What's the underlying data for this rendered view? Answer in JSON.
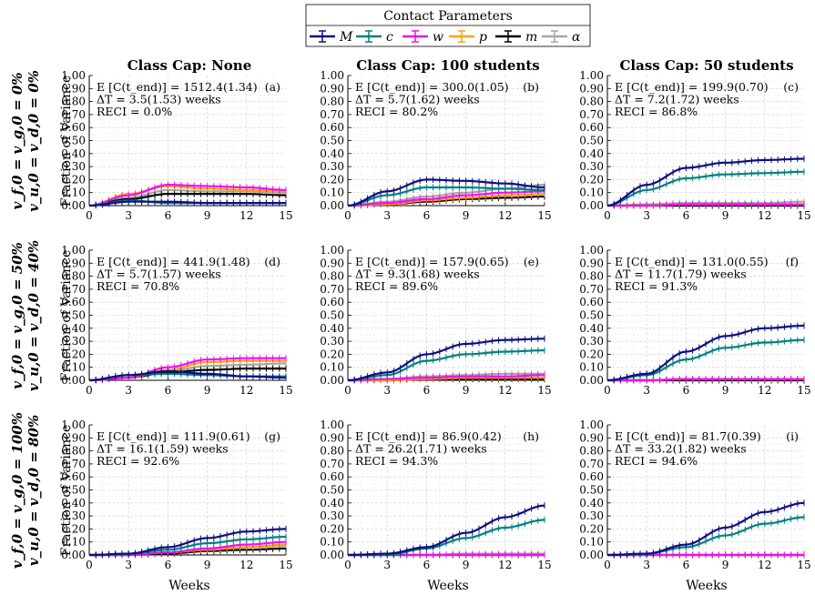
{
  "legend": {
    "title": "Contact Parameters",
    "entries": [
      {
        "label": "M",
        "color": "#0d0d80"
      },
      {
        "label": "c",
        "color": "#008080"
      },
      {
        "label": "w",
        "color": "#ee10ee"
      },
      {
        "label": "p",
        "color": "#ffa500"
      },
      {
        "label": "m",
        "color": "#000000"
      },
      {
        "label": "α",
        "color": "#a6a6a6"
      }
    ]
  },
  "column_titles": [
    "Class Cap: None",
    "Class Cap: 100 students",
    "Class Cap: 50 students"
  ],
  "row_labels": [
    {
      "line1": "v_f,0 = v_g,0 = 0%",
      "line2": "v_u,0 = v_d,0 = 0%"
    },
    {
      "line1": "v_f,0 = v_g,0 = 50%",
      "line2": "v_u,0 = v_d,0 = 40%"
    },
    {
      "line1": "v_f,0 = v_g,0 = 100%",
      "line2": "v_u,0 = v_d,0 = 80%"
    }
  ],
  "y_axis_label": "Fraction of Variance",
  "x_axis_label": "Weeks",
  "chart_data": [
    {
      "type": "line",
      "panel": "(a)",
      "expected_cases": "E [C(t_end)] = 1512.4(1.34)",
      "delta_t": "ΔT = 3.5(1.53) weeks",
      "reci": "RECI = 0.0%",
      "x": [
        0,
        3,
        6,
        9,
        12,
        15
      ],
      "xlim": [
        0,
        15
      ],
      "ylim": [
        0,
        1
      ],
      "series": [
        {
          "name": "M",
          "values": [
            0,
            0.03,
            0.03,
            0.02,
            0.02,
            0.02
          ]
        },
        {
          "name": "c",
          "values": [
            0,
            0.04,
            0.02,
            0.02,
            0.02,
            0.02
          ]
        },
        {
          "name": "w",
          "values": [
            0,
            0.08,
            0.16,
            0.15,
            0.14,
            0.12
          ]
        },
        {
          "name": "p",
          "values": [
            0,
            0.09,
            0.15,
            0.13,
            0.12,
            0.11
          ]
        },
        {
          "name": "m",
          "values": [
            0,
            0.05,
            0.09,
            0.09,
            0.09,
            0.08
          ]
        },
        {
          "name": "α",
          "values": [
            0,
            0.06,
            0.12,
            0.11,
            0.11,
            0.1
          ]
        }
      ]
    },
    {
      "type": "line",
      "panel": "(b)",
      "expected_cases": "E [C(t_end)] = 300.0(1.05)",
      "delta_t": "ΔT = 5.7(1.62) weeks",
      "reci": "RECI = 80.2%",
      "x": [
        0,
        3,
        6,
        9,
        12,
        15
      ],
      "xlim": [
        0,
        15
      ],
      "ylim": [
        0,
        1
      ],
      "series": [
        {
          "name": "M",
          "values": [
            0,
            0.11,
            0.2,
            0.19,
            0.17,
            0.14
          ]
        },
        {
          "name": "c",
          "values": [
            0,
            0.08,
            0.14,
            0.14,
            0.13,
            0.12
          ]
        },
        {
          "name": "w",
          "values": [
            0,
            0.02,
            0.05,
            0.08,
            0.1,
            0.11
          ]
        },
        {
          "name": "p",
          "values": [
            0,
            0.01,
            0.04,
            0.06,
            0.08,
            0.09
          ]
        },
        {
          "name": "m",
          "values": [
            0,
            0.01,
            0.03,
            0.05,
            0.06,
            0.07
          ]
        },
        {
          "name": "α",
          "values": [
            0,
            0.03,
            0.07,
            0.1,
            0.13,
            0.16
          ]
        }
      ]
    },
    {
      "type": "line",
      "panel": "(c)",
      "expected_cases": "E [C(t_end)] = 199.9(0.70)",
      "delta_t": "ΔT = 7.2(1.72) weeks",
      "reci": "RECI = 86.8%",
      "x": [
        0,
        3,
        6,
        9,
        12,
        15
      ],
      "xlim": [
        0,
        15
      ],
      "ylim": [
        0,
        1
      ],
      "series": [
        {
          "name": "M",
          "values": [
            0,
            0.16,
            0.29,
            0.33,
            0.35,
            0.36
          ]
        },
        {
          "name": "c",
          "values": [
            0,
            0.12,
            0.21,
            0.24,
            0.25,
            0.26
          ]
        },
        {
          "name": "w",
          "values": [
            0,
            0.0,
            0.01,
            0.01,
            0.01,
            0.01
          ]
        },
        {
          "name": "p",
          "values": [
            0,
            0.0,
            0.01,
            0.01,
            0.01,
            0.01
          ]
        },
        {
          "name": "m",
          "values": [
            0,
            0.0,
            0.0,
            0.0,
            0.0,
            0.0
          ]
        },
        {
          "name": "α",
          "values": [
            0,
            0.01,
            0.02,
            0.02,
            0.02,
            0.03
          ]
        }
      ]
    },
    {
      "type": "line",
      "panel": "(d)",
      "expected_cases": "E [C(t_end)] = 441.9(1.48)",
      "delta_t": "ΔT = 5.7(1.57) weeks",
      "reci": "RECI = 70.8%",
      "x": [
        0,
        3,
        6,
        9,
        12,
        15
      ],
      "xlim": [
        0,
        15
      ],
      "ylim": [
        0,
        1
      ],
      "series": [
        {
          "name": "M",
          "values": [
            0,
            0.04,
            0.07,
            0.05,
            0.03,
            0.02
          ]
        },
        {
          "name": "c",
          "values": [
            0,
            0.04,
            0.05,
            0.04,
            0.03,
            0.03
          ]
        },
        {
          "name": "w",
          "values": [
            0,
            0.02,
            0.1,
            0.16,
            0.17,
            0.17
          ]
        },
        {
          "name": "p",
          "values": [
            0,
            0.02,
            0.08,
            0.14,
            0.15,
            0.15
          ]
        },
        {
          "name": "m",
          "values": [
            0,
            0.02,
            0.06,
            0.08,
            0.09,
            0.09
          ]
        },
        {
          "name": "α",
          "values": [
            0,
            0.02,
            0.07,
            0.11,
            0.12,
            0.13
          ]
        }
      ]
    },
    {
      "type": "line",
      "panel": "(e)",
      "expected_cases": "E [C(t_end)] = 157.9(0.65)",
      "delta_t": "ΔT = 9.3(1.68) weeks",
      "reci": "RECI = 89.6%",
      "x": [
        0,
        3,
        6,
        9,
        12,
        15
      ],
      "xlim": [
        0,
        15
      ],
      "ylim": [
        0,
        1
      ],
      "series": [
        {
          "name": "M",
          "values": [
            0,
            0.06,
            0.2,
            0.28,
            0.31,
            0.32
          ]
        },
        {
          "name": "c",
          "values": [
            0,
            0.04,
            0.15,
            0.2,
            0.22,
            0.23
          ]
        },
        {
          "name": "w",
          "values": [
            0,
            0.01,
            0.02,
            0.03,
            0.03,
            0.04
          ]
        },
        {
          "name": "p",
          "values": [
            0,
            0.0,
            0.01,
            0.02,
            0.02,
            0.02
          ]
        },
        {
          "name": "m",
          "values": [
            0,
            0.0,
            0.01,
            0.01,
            0.01,
            0.01
          ]
        },
        {
          "name": "α",
          "values": [
            0,
            0.01,
            0.03,
            0.04,
            0.05,
            0.05
          ]
        }
      ]
    },
    {
      "type": "line",
      "panel": "(f)",
      "expected_cases": "E [C(t_end)] = 131.0(0.55)",
      "delta_t": "ΔT = 11.7(1.79) weeks",
      "reci": "RECI = 91.3%",
      "x": [
        0,
        3,
        6,
        9,
        12,
        15
      ],
      "xlim": [
        0,
        15
      ],
      "ylim": [
        0,
        1
      ],
      "series": [
        {
          "name": "M",
          "values": [
            0,
            0.05,
            0.22,
            0.34,
            0.4,
            0.42
          ]
        },
        {
          "name": "c",
          "values": [
            0,
            0.04,
            0.16,
            0.25,
            0.29,
            0.31
          ]
        },
        {
          "name": "w",
          "values": [
            0,
            0.0,
            0.01,
            0.01,
            0.01,
            0.01
          ]
        },
        {
          "name": "p",
          "values": [
            0,
            0.0,
            0.01,
            0.01,
            0.01,
            0.01
          ]
        },
        {
          "name": "m",
          "values": [
            0,
            0.0,
            0.0,
            0.0,
            0.0,
            0.0
          ]
        },
        {
          "name": "α",
          "values": [
            0,
            0.0,
            0.01,
            0.01,
            0.01,
            0.01
          ]
        }
      ]
    },
    {
      "type": "line",
      "panel": "(g)",
      "expected_cases": "E [C(t_end)] = 111.9(0.61)",
      "delta_t": "ΔT = 16.1(1.59) weeks",
      "reci": "RECI = 92.6%",
      "x": [
        0,
        3,
        6,
        9,
        12,
        15
      ],
      "xlim": [
        0,
        15
      ],
      "ylim": [
        0,
        1
      ],
      "series": [
        {
          "name": "M",
          "values": [
            0,
            0.01,
            0.06,
            0.13,
            0.18,
            0.2
          ]
        },
        {
          "name": "c",
          "values": [
            0,
            0.01,
            0.04,
            0.09,
            0.12,
            0.14
          ]
        },
        {
          "name": "w",
          "values": [
            0,
            0.0,
            0.02,
            0.05,
            0.08,
            0.1
          ]
        },
        {
          "name": "p",
          "values": [
            0,
            0.0,
            0.02,
            0.04,
            0.06,
            0.08
          ]
        },
        {
          "name": "m",
          "values": [
            0,
            0.0,
            0.01,
            0.03,
            0.04,
            0.05
          ]
        },
        {
          "name": "α",
          "values": [
            0,
            0.0,
            0.02,
            0.04,
            0.06,
            0.07
          ]
        }
      ]
    },
    {
      "type": "line",
      "panel": "(h)",
      "expected_cases": "E [C(t_end)] = 86.9(0.42)",
      "delta_t": "ΔT = 26.2(1.71) weeks",
      "reci": "RECI = 94.3%",
      "x": [
        0,
        3,
        6,
        9,
        12,
        15
      ],
      "xlim": [
        0,
        15
      ],
      "ylim": [
        0,
        1
      ],
      "series": [
        {
          "name": "M",
          "values": [
            0,
            0.01,
            0.06,
            0.17,
            0.29,
            0.38
          ]
        },
        {
          "name": "c",
          "values": [
            0,
            0.0,
            0.05,
            0.13,
            0.21,
            0.27
          ]
        },
        {
          "name": "w",
          "values": [
            0,
            0.0,
            0.0,
            0.0,
            0.0,
            0.0
          ]
        },
        {
          "name": "p",
          "values": [
            0,
            0.0,
            0.0,
            0.0,
            0.0,
            0.0
          ]
        },
        {
          "name": "m",
          "values": [
            0,
            0.0,
            0.0,
            0.0,
            0.0,
            0.0
          ]
        },
        {
          "name": "α",
          "values": [
            0,
            0.0,
            0.0,
            0.01,
            0.01,
            0.01
          ]
        }
      ]
    },
    {
      "type": "line",
      "panel": "(i)",
      "expected_cases": "E [C(t_end)] = 81.7(0.39)",
      "delta_t": "ΔT = 33.2(1.82) weeks",
      "reci": "RECI = 94.6%",
      "x": [
        0,
        3,
        6,
        9,
        12,
        15
      ],
      "xlim": [
        0,
        15
      ],
      "ylim": [
        0,
        1
      ],
      "series": [
        {
          "name": "M",
          "values": [
            0,
            0.01,
            0.08,
            0.21,
            0.33,
            0.4
          ]
        },
        {
          "name": "c",
          "values": [
            0,
            0.01,
            0.06,
            0.15,
            0.24,
            0.29
          ]
        },
        {
          "name": "w",
          "values": [
            0,
            0.0,
            0.0,
            0.0,
            0.0,
            0.0
          ]
        },
        {
          "name": "p",
          "values": [
            0,
            0.0,
            0.0,
            0.0,
            0.0,
            0.0
          ]
        },
        {
          "name": "m",
          "values": [
            0,
            0.0,
            0.0,
            0.0,
            0.0,
            0.0
          ]
        },
        {
          "name": "α",
          "values": [
            0,
            0.0,
            0.0,
            0.0,
            0.0,
            0.0
          ]
        }
      ]
    }
  ]
}
